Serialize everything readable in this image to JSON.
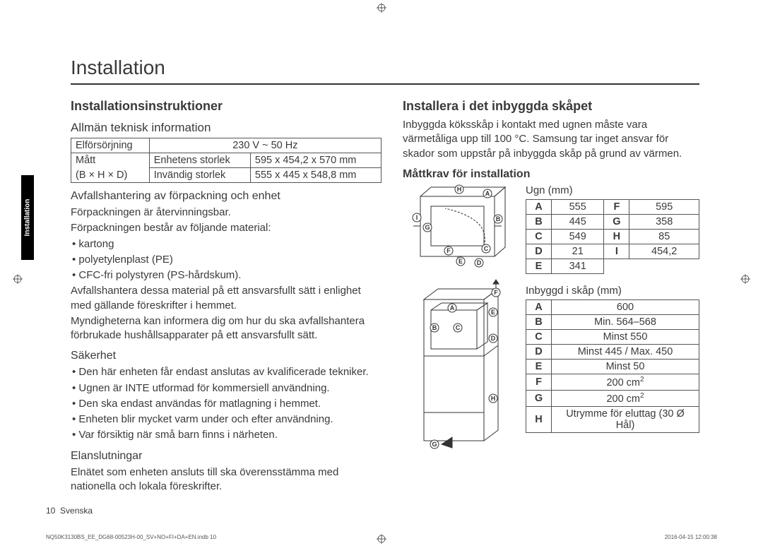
{
  "title": "Installation",
  "sidebar_label": "Installation",
  "left": {
    "h2": "Installationsinstruktioner",
    "tech_h3": "Allmän teknisk information",
    "tech": {
      "r1c1": "Elförsörjning",
      "r1c2": "230 V ~ 50 Hz",
      "r2c1": "Mått",
      "r2c2": "Enhetens storlek",
      "r2c3": "595 x 454,2 x 570 mm",
      "r3c1": "(B × H × D)",
      "r3c2": "Invändig storlek",
      "r3c3": "555 x 445 x 548,8 mm"
    },
    "waste_h3": "Avfallshantering av förpackning och enhet",
    "waste_p1": "Förpackningen är återvinningsbar.",
    "waste_p2": "Förpackningen består av följande material:",
    "waste_b1": "kartong",
    "waste_b2": "polyetylenplast (PE)",
    "waste_b3": "CFC-fri polystyren (PS-hårdskum).",
    "waste_p3": "Avfallshantera dessa material på ett ansvarsfullt sätt i enlighet med gällande föreskrifter i hemmet.",
    "waste_p4": "Myndigheterna kan informera dig om hur du ska avfallshantera förbrukade hushållsapparater på ett ansvarsfullt sätt.",
    "safety_h3": "Säkerhet",
    "safety_b1": "Den här enheten får endast anslutas av kvalificerade tekniker.",
    "safety_b2": "Ugnen är INTE utformad för kommersiell användning.",
    "safety_b3": "Den ska endast användas för matlagning i hemmet.",
    "safety_b4": "Enheten blir mycket varm under och efter användning.",
    "safety_b5": "Var försiktig när små barn finns i närheten.",
    "elec_h3": "Elanslutningar",
    "elec_p1": "Elnätet som enheten ansluts till ska överensstämma med nationella och lokala föreskrifter."
  },
  "right": {
    "h2": "Installera i det inbyggda skåpet",
    "intro": "Inbyggda köksskåp i kontakt med ugnen måste vara värmetåliga upp till 100 °C. Samsung tar inget ansvar för skador som uppstår på inbyggda skåp på grund av värmen.",
    "req_h3": "Måttkrav för installation",
    "oven_label": "Ugn (mm)",
    "oven": {
      "A": "555",
      "F": "595",
      "B": "445",
      "G": "358",
      "C": "549",
      "H": "85",
      "D": "21",
      "I": "454,2",
      "E": "341"
    },
    "cabinet_label": "Inbyggd i skåp (mm)",
    "cabinet": {
      "A": "600",
      "B": "Min. 564–568",
      "C": "Minst 550",
      "D": "Minst 445 / Max. 450",
      "E": "Minst 50",
      "F": "200 cm²",
      "G": "200 cm²",
      "H": "Utrymme för eluttag (30 Ø Hål)"
    }
  },
  "footer": {
    "page": "10",
    "lang": "Svenska",
    "src": "NQ50K3130BS_EE_DG68-00523H-00_SV+NO+FI+DA+EN.indb   10",
    "date": "2016-04-15   12:00:38"
  },
  "diagram": {
    "oven_labels": [
      "H",
      "A",
      "I",
      "B",
      "G",
      "F",
      "C",
      "E",
      "D"
    ],
    "cab_labels": [
      "F",
      "A",
      "E",
      "B",
      "C",
      "D",
      "H",
      "G"
    ]
  }
}
